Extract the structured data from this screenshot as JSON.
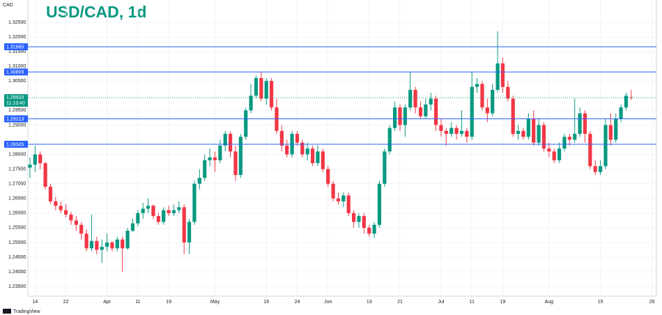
{
  "chart_data": {
    "type": "candlestick",
    "title": "USD/CAD, 1d",
    "y_axis_label": "CAD",
    "brand": "TradingView",
    "up_color": "#089981",
    "down_color": "#f23645",
    "level_color": "#2962ff",
    "grid": true,
    "ylim": [
      1.2317,
      1.3326
    ],
    "xlim": [
      -0.4,
      121.9
    ],
    "yticks": [
      {
        "value": 1.325,
        "label": "1.32500"
      },
      {
        "value": 1.32,
        "label": "1.32000"
      },
      {
        "value": 1.315,
        "label": "1.31500"
      },
      {
        "value": 1.31,
        "label": "1.31000"
      },
      {
        "value": 1.305,
        "label": "1.30500"
      },
      {
        "value": 1.295,
        "label": "1.29500"
      },
      {
        "value": 1.29,
        "label": "1.29000"
      },
      {
        "value": 1.28,
        "label": "1.28000"
      },
      {
        "value": 1.275,
        "label": "1.27500"
      },
      {
        "value": 1.27,
        "label": "1.27000"
      },
      {
        "value": 1.265,
        "label": "1.26500"
      },
      {
        "value": 1.26,
        "label": "1.26000"
      },
      {
        "value": 1.255,
        "label": "1.25500"
      },
      {
        "value": 1.25,
        "label": "1.25000"
      },
      {
        "value": 1.245,
        "label": "1.24500"
      },
      {
        "value": 1.24,
        "label": "1.24000"
      },
      {
        "value": 1.235,
        "label": "1.23500"
      }
    ],
    "xticks": [
      {
        "value": 1,
        "label": "14"
      },
      {
        "value": 7,
        "label": "22"
      },
      {
        "value": 15,
        "label": "Apr"
      },
      {
        "value": 21,
        "label": "11"
      },
      {
        "value": 27,
        "label": "19"
      },
      {
        "value": 36,
        "label": "May"
      },
      {
        "value": 46,
        "label": "16"
      },
      {
        "value": 52,
        "label": "24"
      },
      {
        "value": 58,
        "label": "Jun"
      },
      {
        "value": 66,
        "label": "13"
      },
      {
        "value": 72,
        "label": "21"
      },
      {
        "value": 80,
        "label": "Jul"
      },
      {
        "value": 86,
        "label": "11"
      },
      {
        "value": 92,
        "label": "19"
      },
      {
        "value": 101,
        "label": "Aug"
      },
      {
        "value": 111,
        "label": "15"
      },
      {
        "value": 121,
        "label": "29"
      }
    ],
    "levels": [
      1.31665,
      1.30809,
      1.29213,
      1.28345
    ],
    "current_price": {
      "value": 1.29933,
      "countdown": "11:13:40"
    },
    "candles": [
      [
        1.2755,
        1.279,
        1.272,
        1.2765
      ],
      [
        1.2765,
        1.283,
        1.274,
        1.28
      ],
      [
        1.28,
        1.281,
        1.275,
        1.277
      ],
      [
        1.277,
        1.2775,
        1.268,
        1.269
      ],
      [
        1.269,
        1.27,
        1.263,
        1.264
      ],
      [
        1.264,
        1.2655,
        1.261,
        1.2625
      ],
      [
        1.2625,
        1.264,
        1.26,
        1.261
      ],
      [
        1.261,
        1.263,
        1.2585,
        1.2595
      ],
      [
        1.2595,
        1.2605,
        1.256,
        1.2575
      ],
      [
        1.2575,
        1.259,
        1.254,
        1.256
      ],
      [
        1.256,
        1.257,
        1.251,
        1.253
      ],
      [
        1.253,
        1.2545,
        1.247,
        1.248
      ],
      [
        1.248,
        1.2595,
        1.247,
        1.2505
      ],
      [
        1.2505,
        1.252,
        1.246,
        1.2475
      ],
      [
        1.2475,
        1.251,
        1.243,
        1.2485
      ],
      [
        1.2485,
        1.253,
        1.247,
        1.25
      ],
      [
        1.25,
        1.2505,
        1.247,
        1.248
      ],
      [
        1.248,
        1.252,
        1.247,
        1.251
      ],
      [
        1.251,
        1.252,
        1.24,
        1.248
      ],
      [
        1.248,
        1.255,
        1.2475,
        1.254
      ],
      [
        1.254,
        1.258,
        1.2535,
        1.2565
      ],
      [
        1.2565,
        1.261,
        1.2555,
        1.26
      ],
      [
        1.26,
        1.2635,
        1.258,
        1.2615
      ],
      [
        1.2615,
        1.265,
        1.26,
        1.2625
      ],
      [
        1.2625,
        1.263,
        1.258,
        1.259
      ],
      [
        1.259,
        1.26,
        1.256,
        1.257
      ],
      [
        1.257,
        1.262,
        1.256,
        1.261
      ],
      [
        1.261,
        1.2625,
        1.259,
        1.26
      ],
      [
        1.26,
        1.263,
        1.259,
        1.261
      ],
      [
        1.261,
        1.264,
        1.26,
        1.262
      ],
      [
        1.262,
        1.263,
        1.246,
        1.25
      ],
      [
        1.25,
        1.258,
        1.246,
        1.257
      ],
      [
        1.257,
        1.271,
        1.256,
        1.27
      ],
      [
        1.27,
        1.275,
        1.268,
        1.272
      ],
      [
        1.272,
        1.28,
        1.271,
        1.278
      ],
      [
        1.278,
        1.282,
        1.276,
        1.279
      ],
      [
        1.279,
        1.281,
        1.274,
        1.278
      ],
      [
        1.278,
        1.285,
        1.277,
        1.283
      ],
      [
        1.283,
        1.288,
        1.281,
        1.287
      ],
      [
        1.287,
        1.288,
        1.279,
        1.281
      ],
      [
        1.281,
        1.283,
        1.271,
        1.273
      ],
      [
        1.273,
        1.287,
        1.272,
        1.286
      ],
      [
        1.286,
        1.296,
        1.285,
        1.295
      ],
      [
        1.295,
        1.304,
        1.294,
        1.3
      ],
      [
        1.3,
        1.307,
        1.299,
        1.306
      ],
      [
        1.306,
        1.308,
        1.298,
        1.299
      ],
      [
        1.299,
        1.306,
        1.297,
        1.305
      ],
      [
        1.305,
        1.306,
        1.295,
        1.296
      ],
      [
        1.296,
        1.299,
        1.287,
        1.288
      ],
      [
        1.288,
        1.29,
        1.281,
        1.283
      ],
      [
        1.283,
        1.285,
        1.279,
        1.28
      ],
      [
        1.28,
        1.288,
        1.279,
        1.287
      ],
      [
        1.287,
        1.288,
        1.283,
        1.284
      ],
      [
        1.284,
        1.285,
        1.279,
        1.28
      ],
      [
        1.28,
        1.284,
        1.278,
        1.282
      ],
      [
        1.282,
        1.283,
        1.276,
        1.277
      ],
      [
        1.277,
        1.283,
        1.276,
        1.281
      ],
      [
        1.281,
        1.282,
        1.274,
        1.275
      ],
      [
        1.275,
        1.276,
        1.269,
        1.27
      ],
      [
        1.27,
        1.271,
        1.264,
        1.265
      ],
      [
        1.265,
        1.267,
        1.263,
        1.264
      ],
      [
        1.264,
        1.267,
        1.262,
        1.266
      ],
      [
        1.266,
        1.267,
        1.259,
        1.26
      ],
      [
        1.26,
        1.261,
        1.255,
        1.257
      ],
      [
        1.257,
        1.26,
        1.255,
        1.259
      ],
      [
        1.259,
        1.26,
        1.253,
        1.255
      ],
      [
        1.255,
        1.256,
        1.252,
        1.253
      ],
      [
        1.253,
        1.257,
        1.2515,
        1.256
      ],
      [
        1.256,
        1.271,
        1.255,
        1.27
      ],
      [
        1.27,
        1.282,
        1.269,
        1.281
      ],
      [
        1.281,
        1.29,
        1.28,
        1.289
      ],
      [
        1.289,
        1.298,
        1.288,
        1.296
      ],
      [
        1.296,
        1.297,
        1.288,
        1.29
      ],
      [
        1.29,
        1.297,
        1.286,
        1.296
      ],
      [
        1.296,
        1.308,
        1.295,
        1.302
      ],
      [
        1.302,
        1.303,
        1.294,
        1.296
      ],
      [
        1.296,
        1.298,
        1.292,
        1.293
      ],
      [
        1.293,
        1.299,
        1.292,
        1.297
      ],
      [
        1.297,
        1.301,
        1.295,
        1.299
      ],
      [
        1.299,
        1.3,
        1.288,
        1.29
      ],
      [
        1.29,
        1.292,
        1.286,
        1.288
      ],
      [
        1.288,
        1.289,
        1.283,
        1.287
      ],
      [
        1.287,
        1.291,
        1.286,
        1.289
      ],
      [
        1.289,
        1.29,
        1.285,
        1.287
      ],
      [
        1.287,
        1.295,
        1.286,
        1.288
      ],
      [
        1.288,
        1.289,
        1.284,
        1.286
      ],
      [
        1.286,
        1.308,
        1.285,
        1.303
      ],
      [
        1.303,
        1.306,
        1.301,
        1.304
      ],
      [
        1.304,
        1.305,
        1.295,
        1.296
      ],
      [
        1.296,
        1.299,
        1.291,
        1.294
      ],
      [
        1.294,
        1.304,
        1.293,
        1.302
      ],
      [
        1.302,
        1.322,
        1.301,
        1.311
      ],
      [
        1.311,
        1.313,
        1.301,
        1.303
      ],
      [
        1.303,
        1.305,
        1.298,
        1.299
      ],
      [
        1.299,
        1.3,
        1.286,
        1.287
      ],
      [
        1.287,
        1.29,
        1.285,
        1.288
      ],
      [
        1.288,
        1.289,
        1.285,
        1.286
      ],
      [
        1.286,
        1.294,
        1.285,
        1.292
      ],
      [
        1.292,
        1.295,
        1.283,
        1.284
      ],
      [
        1.284,
        1.292,
        1.283,
        1.29
      ],
      [
        1.29,
        1.291,
        1.281,
        1.282
      ],
      [
        1.282,
        1.284,
        1.279,
        1.281
      ],
      [
        1.281,
        1.282,
        1.277,
        1.278
      ],
      [
        1.278,
        1.284,
        1.277,
        1.282
      ],
      [
        1.282,
        1.287,
        1.281,
        1.286
      ],
      [
        1.286,
        1.287,
        1.283,
        1.285
      ],
      [
        1.285,
        1.299,
        1.284,
        1.287
      ],
      [
        1.287,
        1.296,
        1.286,
        1.294
      ],
      [
        1.294,
        1.295,
        1.284,
        1.287
      ],
      [
        1.287,
        1.288,
        1.275,
        1.276
      ],
      [
        1.276,
        1.278,
        1.273,
        1.274
      ],
      [
        1.274,
        1.278,
        1.273,
        1.276
      ],
      [
        1.276,
        1.292,
        1.275,
        1.29
      ],
      [
        1.29,
        1.294,
        1.283,
        1.285
      ],
      [
        1.285,
        1.294,
        1.284,
        1.292
      ],
      [
        1.292,
        1.297,
        1.291,
        1.296
      ],
      [
        1.296,
        1.301,
        1.295,
        1.3
      ],
      [
        1.2995,
        1.302,
        1.2985,
        1.29933
      ]
    ]
  }
}
